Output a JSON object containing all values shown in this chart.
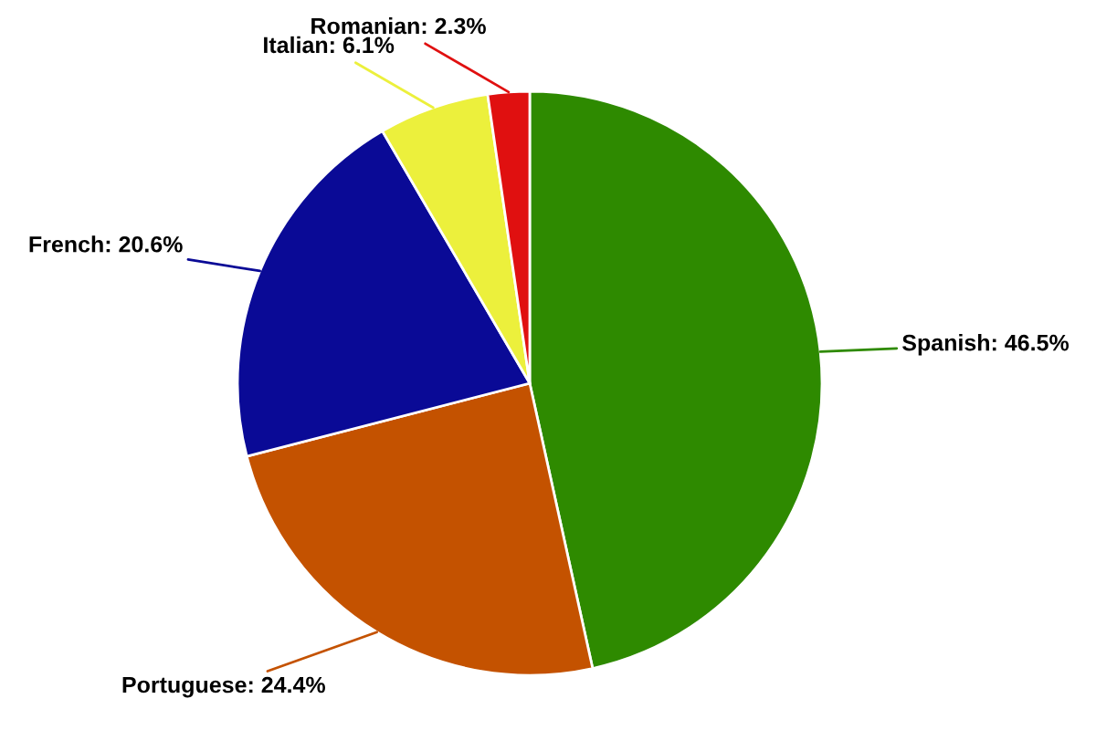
{
  "chart_data": {
    "type": "pie",
    "categories": [
      "Spanish",
      "Portuguese",
      "French",
      "Italian",
      "Romanian"
    ],
    "values": [
      46.5,
      24.4,
      20.6,
      6.1,
      2.3
    ],
    "value_labels": [
      "46.5%",
      "24.4%",
      "20.6%",
      "6.1%",
      "2.3%"
    ],
    "colors": [
      "#2e8a00",
      "#c45200",
      "#0a0a96",
      "#ecf03c",
      "#e01010"
    ]
  }
}
